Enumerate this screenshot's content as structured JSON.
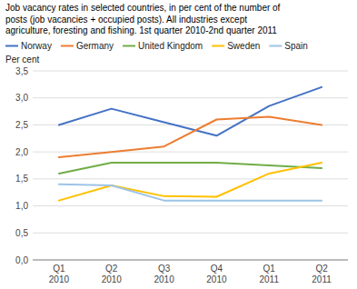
{
  "chart_data": {
    "type": "line",
    "title": "Job vacancy rates in selected countries, in per cent of the number of\nposts (job vacancies + occupied posts). All industries except\nagriculture, foresting and fishing. 1st quarter 2010-2nd quarter 2011",
    "y_label": "Per cent",
    "categories": [
      "Q1\n2010",
      "Q2\n2010",
      "Q3\n2010",
      "Q4\n2010",
      "Q1\n2011",
      "Q2\n2011"
    ],
    "series": [
      {
        "name": "Norway",
        "color": "#4472C4",
        "values": [
          2.5,
          2.8,
          2.55,
          2.3,
          2.85,
          3.2
        ]
      },
      {
        "name": "Germany",
        "color": "#ED7D31",
        "values": [
          1.9,
          2.0,
          2.1,
          2.6,
          2.65,
          2.5
        ]
      },
      {
        "name": "United Kingdom",
        "color": "#70AD47",
        "values": [
          1.6,
          1.8,
          1.8,
          1.8,
          1.75,
          1.7
        ]
      },
      {
        "name": "Sweden",
        "color": "#FFC000",
        "values": [
          1.1,
          1.38,
          1.18,
          1.17,
          1.6,
          1.8
        ]
      },
      {
        "name": "Spain",
        "color": "#9DC3E6",
        "values": [
          1.4,
          1.38,
          1.1,
          1.1,
          1.1,
          1.1
        ]
      }
    ],
    "ylim": [
      0.0,
      3.5
    ],
    "yticks": [
      {
        "value": 0.0,
        "label": "0,0"
      },
      {
        "value": 0.5,
        "label": "0,5"
      },
      {
        "value": 1.0,
        "label": "1,0"
      },
      {
        "value": 1.5,
        "label": "1,5"
      },
      {
        "value": 2.0,
        "label": "2,0"
      },
      {
        "value": 2.5,
        "label": "2,5"
      },
      {
        "value": 3.0,
        "label": "3,0"
      },
      {
        "value": 3.5,
        "label": "3,5"
      }
    ],
    "grid": true,
    "legend": "top"
  }
}
